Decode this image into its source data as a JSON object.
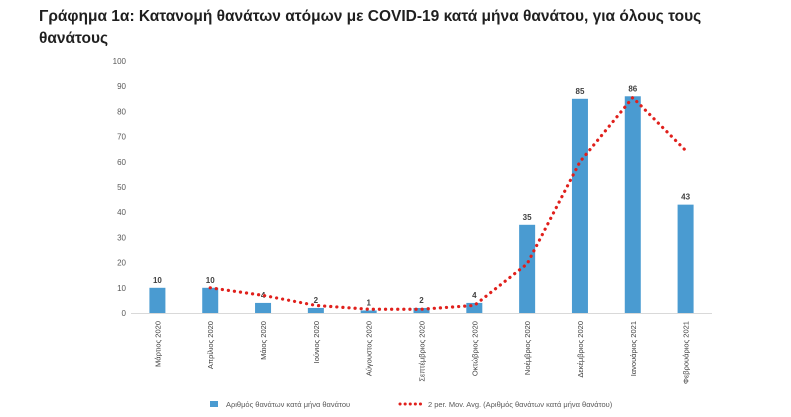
{
  "chart_data": {
    "type": "bar",
    "title": "Γράφημα 1α: Κατανομή θανάτων ατόμων με COVID-19 κατά μήνα θανάτου, για όλους τους θανάτους",
    "categories": [
      "Μάρτιος 2020",
      "Απρίλιος 2020",
      "Μάιος 2020",
      "Ιούνιος 2020",
      "Αύγουστος 2020",
      "Σεπτέμβριος 2020",
      "Οκτώβριος 2020",
      "Νοέμβριος 2020",
      "Δεκέμβριος 2020",
      "Ιανουάριος 2021",
      "Φεβρουάριος 2021"
    ],
    "series": [
      {
        "name": "Αριθμός θανάτων κατά μήνα θανάτου",
        "kind": "bar",
        "color": "#4a9bd1",
        "values": [
          10,
          10,
          4,
          2,
          1,
          2,
          4,
          35,
          85,
          86,
          43
        ],
        "labels": [
          "10",
          "10",
          "4",
          "2",
          "1",
          "2",
          "4",
          "35",
          "85",
          "86",
          "43"
        ]
      },
      {
        "name": "2 per. Mov. Avg. (Αριθμός θανάτων κατά μήνα θανάτου)",
        "kind": "moving-average",
        "color": "#e0201c",
        "values": [
          null,
          10,
          7,
          3,
          1.5,
          1.5,
          3,
          19.5,
          60,
          85.5,
          64.5
        ]
      }
    ],
    "ylim": [
      0,
      100
    ],
    "yticks": [
      "0",
      "10",
      "20",
      "30",
      "40",
      "50",
      "60",
      "70",
      "80",
      "90",
      "100"
    ],
    "xlabel": "",
    "ylabel": "",
    "grid": false,
    "legend_position": "bottom"
  }
}
